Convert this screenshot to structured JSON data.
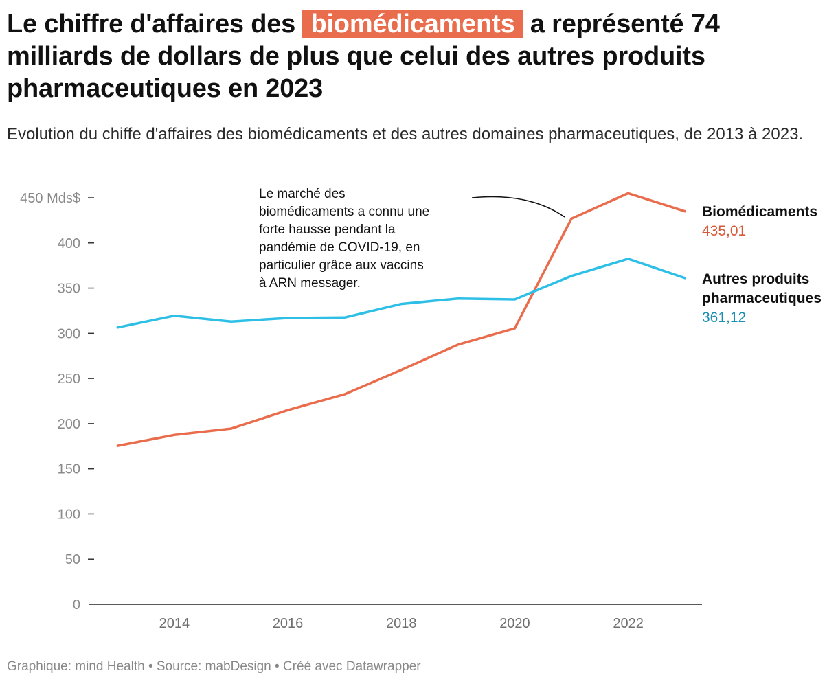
{
  "title": {
    "before": "Le chiffre d'affaires des",
    "highlight": "biomédicaments",
    "after": "a représenté 74 milliards de dollars de plus que celui des autres produits pharmaceutiques en 2023"
  },
  "subtitle": "Evolution du chiffe d'affaires des biomédicaments et des autres domaines pharmaceutiques, de 2013 à 2023.",
  "footer": "Graphique: mind Health • Source: mabDesign • Créé avec Datawrapper",
  "colors": {
    "biomed": "#e96c4c",
    "biomed_value": "#d65a38",
    "other": "#2ebfe6",
    "other_value": "#1b8fb0",
    "axis_label": "#8a8a8a",
    "axis_line": "#222222"
  },
  "chart_data": {
    "type": "line",
    "x": [
      2013,
      2014,
      2015,
      2016,
      2017,
      2018,
      2019,
      2020,
      2021,
      2022,
      2023
    ],
    "xlim": [
      2012.5,
      2023.3
    ],
    "xticks": [
      2014,
      2016,
      2018,
      2020,
      2022
    ],
    "ylim": [
      0,
      450
    ],
    "yticks": [
      0,
      50,
      100,
      150,
      200,
      250,
      300,
      350,
      400,
      450
    ],
    "ytick_labels": [
      "0",
      "50",
      "100",
      "150",
      "200",
      "250",
      "300",
      "350",
      "400",
      "450 Mds$"
    ],
    "grid": false,
    "series": [
      {
        "key": "biomed",
        "name": "Biomédicaments",
        "end_label": "435,01",
        "values": [
          175.5,
          187.5,
          194.5,
          215,
          232.5,
          259.5,
          287.5,
          305.5,
          427,
          455,
          435.01
        ]
      },
      {
        "key": "other",
        "name": "Autres produits pharmaceutiques",
        "name_lines": [
          "Autres produits",
          "pharmaceutiques"
        ],
        "end_label": "361,12",
        "values": [
          306.5,
          319.5,
          313,
          317,
          317.5,
          332.5,
          338.5,
          337.5,
          363.5,
          382.5,
          361.12
        ]
      }
    ],
    "annotation": {
      "lines": [
        "Le marché des",
        "biomédicaments a connu une",
        "forte hausse pendant la",
        "pandémie de COVID-19, en",
        "particulier grâce aux vaccins",
        "à ARN messager."
      ]
    }
  }
}
